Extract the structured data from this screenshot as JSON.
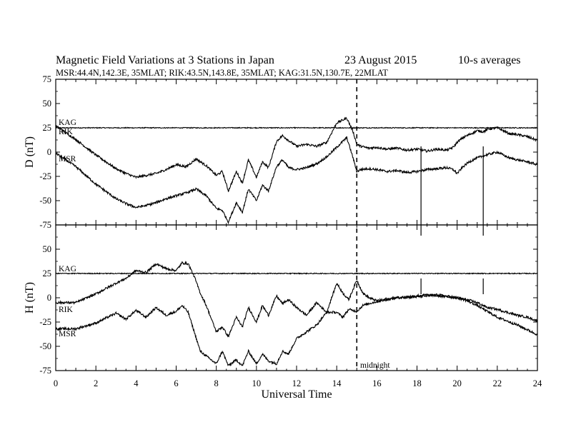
{
  "title": {
    "main": "Magnetic Field Variations at 3 Stations in Japan",
    "date": "23  August  2015",
    "avg": "10-s averages",
    "stations": "MSR:44.4N,142.3E, 35MLAT;  RIK:43.5N,143.8E, 35MLAT;  KAG:31.5N,130.7E, 22MLAT"
  },
  "chart_data": {
    "type": "line",
    "xlabel": "Universal Time",
    "xlim": [
      0,
      24
    ],
    "x_ticks": [
      "0",
      "2",
      "4",
      "6",
      "8",
      "10",
      "12",
      "14",
      "16",
      "18",
      "20",
      "22",
      "24"
    ],
    "midnight": {
      "x": 15,
      "label": "midnight"
    },
    "panels": [
      {
        "ylabel": "D (nT)",
        "ylim": [
          -75,
          75
        ],
        "y_ticks": [
          "75",
          "50",
          "25",
          "0",
          "-25",
          "-50",
          "-75"
        ],
        "series": [
          {
            "name": "KAG",
            "x": [
              0,
              24
            ],
            "y": [
              25,
              25
            ]
          },
          {
            "name": "RIK",
            "x": [
              0,
              1,
              2,
              3,
              3.5,
              4,
              4.5,
              5,
              5.5,
              6,
              6.5,
              7,
              7.5,
              8,
              8.3,
              8.6,
              9,
              9.3,
              9.6,
              10,
              10.3,
              10.6,
              11,
              11.3,
              11.6,
              12,
              12.5,
              13,
              13.5,
              14,
              14.5,
              14.8,
              15,
              15.2,
              15.6,
              16,
              16.5,
              17,
              17.5,
              18,
              18.5,
              19,
              19.5,
              19.8,
              20,
              20.3,
              20.6,
              21,
              21.3,
              21.6,
              22,
              22.3,
              22.6,
              23,
              23.5,
              24
            ],
            "y": [
              27,
              13,
              -3,
              -17,
              -22,
              -26,
              -24,
              -22,
              -18,
              -13,
              -15,
              -7,
              -14,
              -24,
              -20,
              -40,
              -20,
              -32,
              -8,
              -26,
              -10,
              -16,
              11,
              17,
              12,
              6,
              8,
              6,
              10,
              30,
              35,
              22,
              8,
              6,
              4,
              5,
              3,
              4,
              2,
              3,
              1,
              3,
              2,
              5,
              10,
              15,
              18,
              22,
              21,
              24,
              25,
              22,
              19,
              18,
              16,
              12
            ]
          },
          {
            "name": "MSR",
            "x": [
              0,
              1,
              2,
              3,
              3.5,
              4,
              4.5,
              5,
              5.5,
              6,
              6.5,
              7,
              7.5,
              8,
              8.3,
              8.6,
              9,
              9.3,
              9.6,
              10,
              10.3,
              10.6,
              11,
              11.3,
              11.6,
              12,
              12.5,
              13,
              13.5,
              14,
              14.5,
              14.8,
              15,
              15.2,
              15.6,
              16,
              16.5,
              17,
              17.5,
              18,
              18.5,
              19,
              19.5,
              19.8,
              20,
              20.3,
              20.6,
              21,
              21.3,
              21.6,
              22,
              22.3,
              22.6,
              23,
              23.5,
              24
            ],
            "y": [
              -1,
              -15,
              -33,
              -48,
              -53,
              -57,
              -55,
              -52,
              -48,
              -45,
              -42,
              -38,
              -45,
              -58,
              -60,
              -72,
              -52,
              -62,
              -38,
              -50,
              -34,
              -40,
              -15,
              -8,
              -16,
              -18,
              -16,
              -12,
              -5,
              5,
              15,
              -5,
              -20,
              -18,
              -17,
              -18,
              -20,
              -19,
              -21,
              -20,
              -18,
              -17,
              -16,
              -18,
              -22,
              -15,
              -10,
              -6,
              -4,
              -2,
              0,
              -3,
              -6,
              -8,
              -10,
              -13
            ]
          }
        ]
      },
      {
        "ylabel": "H (nT)",
        "ylim": [
          -75,
          75
        ],
        "y_ticks": [
          "75",
          "50",
          "25",
          "0",
          "-25",
          "-50",
          "-75"
        ],
        "series": [
          {
            "name": "KAG",
            "x": [
              0,
              24
            ],
            "y": [
              25,
              25
            ]
          },
          {
            "name": "RIK",
            "x": [
              0,
              1,
              2,
              3,
              3.5,
              4,
              4.5,
              5,
              5.5,
              6,
              6.3,
              6.6,
              6.9,
              7.2,
              7.5,
              8,
              8.3,
              8.6,
              9,
              9.3,
              9.6,
              10,
              10.3,
              10.6,
              11,
              11.3,
              11.6,
              12,
              12.5,
              13,
              13.5,
              14,
              14.3,
              14.6,
              15,
              15.3,
              15.6,
              16,
              17,
              18,
              18.5,
              19,
              20,
              20.5,
              21,
              21.5,
              22,
              22.5,
              23,
              23.5,
              24
            ],
            "y": [
              -5,
              -5,
              4,
              15,
              20,
              28,
              26,
              35,
              30,
              28,
              36,
              35,
              22,
              5,
              -8,
              -35,
              -30,
              -40,
              -20,
              -30,
              -10,
              -25,
              -8,
              -18,
              2,
              -6,
              -2,
              -10,
              -18,
              -5,
              -15,
              15,
              5,
              -2,
              18,
              5,
              0,
              -3,
              0,
              1,
              2,
              3,
              0,
              -2,
              -5,
              -10,
              -12,
              -15,
              -18,
              -20,
              -24
            ]
          },
          {
            "name": "MSR",
            "x": [
              0,
              1,
              2,
              3,
              3.5,
              4,
              4.5,
              5,
              5.5,
              6,
              6.3,
              6.6,
              6.9,
              7.2,
              7.5,
              8,
              8.3,
              8.6,
              9,
              9.3,
              9.6,
              10,
              10.3,
              10.6,
              11,
              11.3,
              11.6,
              12,
              12.5,
              13,
              13.5,
              14,
              14.3,
              14.6,
              15,
              15.3,
              15.6,
              16,
              17,
              18,
              18.5,
              19,
              20,
              20.5,
              21,
              21.5,
              22,
              22.5,
              23,
              23.5,
              24
            ],
            "y": [
              -32,
              -32,
              -26,
              -16,
              -22,
              -13,
              -20,
              -10,
              -18,
              -14,
              -8,
              -15,
              -35,
              -55,
              -60,
              -68,
              -55,
              -70,
              -64,
              -70,
              -55,
              -68,
              -58,
              -65,
              -68,
              -55,
              -58,
              -42,
              -35,
              -28,
              -15,
              -15,
              -20,
              -12,
              -14,
              -8,
              -6,
              -4,
              0,
              2,
              3,
              2,
              0,
              -3,
              -8,
              -14,
              -20,
              -24,
              -28,
              -33,
              -38
            ]
          }
        ]
      }
    ]
  }
}
